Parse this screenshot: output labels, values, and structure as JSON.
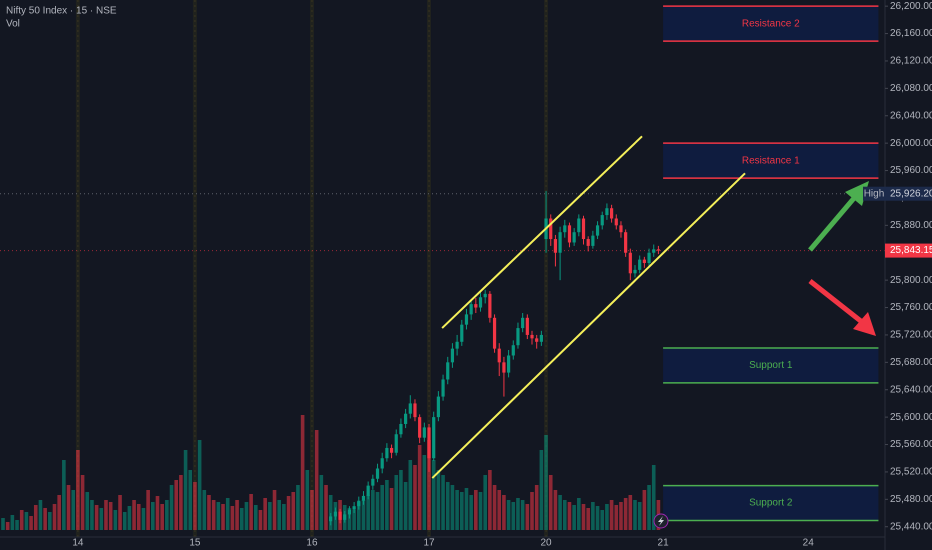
{
  "chart_data": {
    "type": "candlestick",
    "title": "Nifty 50 Index · 15 · NSE",
    "volume_label": "Vol",
    "up_color": "#089981",
    "down_color": "#f23645",
    "xlim": [
      -0.64,
      188.4
    ],
    "ylim": [
      25425,
      26209
    ],
    "xticks": [
      {
        "value": 16,
        "label": "14"
      },
      {
        "value": 41,
        "label": "15"
      },
      {
        "value": 66,
        "label": "16"
      },
      {
        "value": 91,
        "label": "17"
      },
      {
        "value": 116,
        "label": "20"
      },
      {
        "value": 141,
        "label": "21"
      },
      {
        "value": 172,
        "label": "24"
      }
    ],
    "yticks": [
      {
        "value": 26200,
        "label": "26,200.00"
      },
      {
        "value": 26160,
        "label": "26,160.00"
      },
      {
        "value": 26120,
        "label": "26,120.00"
      },
      {
        "value": 26080,
        "label": "26,080.00"
      },
      {
        "value": 26040,
        "label": "26,040.00"
      },
      {
        "value": 26000,
        "label": "26,000.00"
      },
      {
        "value": 25960,
        "label": "25,960.00"
      },
      {
        "value": 25920,
        "label": "25,920.00"
      },
      {
        "value": 25880,
        "label": "25,880.00"
      },
      {
        "value": 25840,
        "label": "25,840.00"
      },
      {
        "value": 25800,
        "label": "25,800.00"
      },
      {
        "value": 25760,
        "label": "25,760.00"
      },
      {
        "value": 25720,
        "label": "25,720.00"
      },
      {
        "value": 25680,
        "label": "25,680.00"
      },
      {
        "value": 25640,
        "label": "25,640.00"
      },
      {
        "value": 25600,
        "label": "25,600.00"
      },
      {
        "value": 25560,
        "label": "25,560.00"
      },
      {
        "value": 25520,
        "label": "25,520.00"
      },
      {
        "value": 25480,
        "label": "25,480.00"
      },
      {
        "value": 25440,
        "label": "25,440.00"
      }
    ],
    "candles": {
      "x": [
        70,
        71,
        72,
        73,
        74,
        75,
        76,
        77,
        78,
        79,
        80,
        81,
        82,
        83,
        84,
        85,
        86,
        87,
        88,
        89,
        90,
        91,
        92,
        93,
        94,
        95,
        96,
        97,
        98,
        99,
        100,
        101,
        102,
        103,
        104,
        105,
        106,
        107,
        108,
        109,
        110,
        111,
        112,
        113,
        114,
        115,
        116,
        117,
        118,
        119,
        120,
        121,
        122,
        123,
        124,
        125,
        126,
        127,
        128,
        129,
        130,
        131,
        132,
        133,
        134,
        135,
        136,
        137,
        138,
        139,
        140
      ],
      "ohlc": [
        [
          25448,
          25460,
          25442,
          25455
        ],
        [
          25455,
          25468,
          25450,
          25462
        ],
        [
          25462,
          25466,
          25445,
          25450
        ],
        [
          25450,
          25463,
          25446,
          25458
        ],
        [
          25458,
          25470,
          25452,
          25465
        ],
        [
          25465,
          25476,
          25460,
          25470
        ],
        [
          25470,
          25484,
          25465,
          25478
        ],
        [
          25478,
          25492,
          25472,
          25485
        ],
        [
          25485,
          25506,
          25480,
          25500
        ],
        [
          25500,
          25516,
          25494,
          25510
        ],
        [
          25510,
          25532,
          25505,
          25525
        ],
        [
          25525,
          25548,
          25518,
          25540
        ],
        [
          25540,
          25562,
          25535,
          25555
        ],
        [
          25555,
          25560,
          25540,
          25548
        ],
        [
          25548,
          25582,
          25544,
          25575
        ],
        [
          25575,
          25598,
          25570,
          25590
        ],
        [
          25590,
          25612,
          25584,
          25605
        ],
        [
          25605,
          25632,
          25598,
          25620
        ],
        [
          25620,
          25626,
          25594,
          25600
        ],
        [
          25600,
          25604,
          25562,
          25570
        ],
        [
          25570,
          25592,
          25564,
          25585
        ],
        [
          25585,
          25590,
          25520,
          25540
        ],
        [
          25540,
          25608,
          25536,
          25600
        ],
        [
          25600,
          25638,
          25594,
          25630
        ],
        [
          25630,
          25662,
          25624,
          25655
        ],
        [
          25655,
          25688,
          25648,
          25680
        ],
        [
          25680,
          25708,
          25672,
          25700
        ],
        [
          25700,
          25720,
          25690,
          25710
        ],
        [
          25710,
          25742,
          25704,
          25735
        ],
        [
          25735,
          25758,
          25728,
          25750
        ],
        [
          25750,
          25772,
          25742,
          25765
        ],
        [
          25765,
          25774,
          25752,
          25760
        ],
        [
          25760,
          25782,
          25754,
          25775
        ],
        [
          25775,
          25786,
          25766,
          25780
        ],
        [
          25780,
          25784,
          25738,
          25745
        ],
        [
          25745,
          25750,
          25694,
          25700
        ],
        [
          25700,
          25708,
          25660,
          25680
        ],
        [
          25680,
          25688,
          25630,
          25665
        ],
        [
          25665,
          25698,
          25658,
          25690
        ],
        [
          25690,
          25712,
          25684,
          25705
        ],
        [
          25705,
          25738,
          25700,
          25730
        ],
        [
          25730,
          25752,
          25724,
          25745
        ],
        [
          25745,
          25750,
          25714,
          25720
        ],
        [
          25720,
          25726,
          25706,
          25715
        ],
        [
          25715,
          25720,
          25700,
          25710
        ],
        [
          25710,
          25726,
          25704,
          25720
        ],
        [
          25860,
          25930,
          25840,
          25890
        ],
        [
          25890,
          25896,
          25850,
          25860
        ],
        [
          25860,
          25866,
          25820,
          25840
        ],
        [
          25840,
          25878,
          25800,
          25870
        ],
        [
          25870,
          25888,
          25862,
          25880
        ],
        [
          25880,
          25884,
          25848,
          25855
        ],
        [
          25855,
          25876,
          25850,
          25870
        ],
        [
          25870,
          25896,
          25864,
          25890
        ],
        [
          25890,
          25894,
          25852,
          25860
        ],
        [
          25860,
          25864,
          25842,
          25850
        ],
        [
          25850,
          25872,
          25846,
          25865
        ],
        [
          25865,
          25886,
          25860,
          25880
        ],
        [
          25880,
          25900,
          25874,
          25895
        ],
        [
          25895,
          25912,
          25888,
          25905
        ],
        [
          25905,
          25910,
          25884,
          25890
        ],
        [
          25890,
          25896,
          25874,
          25880
        ],
        [
          25880,
          25886,
          25862,
          25870
        ],
        [
          25870,
          25874,
          25834,
          25840
        ],
        [
          25840,
          25846,
          25800,
          25810
        ],
        [
          25810,
          25822,
          25804,
          25815
        ],
        [
          25815,
          25836,
          25810,
          25830
        ],
        [
          25830,
          25834,
          25818,
          25825
        ],
        [
          25825,
          25846,
          25820,
          25840
        ],
        [
          25840,
          25852,
          25834,
          25845
        ],
        [
          25845,
          25850,
          25838,
          25843.15
        ]
      ]
    },
    "volume": {
      "x": [
        0,
        1,
        2,
        3,
        4,
        5,
        6,
        7,
        8,
        9,
        10,
        11,
        12,
        13,
        14,
        15,
        16,
        17,
        18,
        19,
        20,
        21,
        22,
        23,
        24,
        25,
        26,
        27,
        28,
        29,
        30,
        31,
        32,
        33,
        34,
        35,
        36,
        37,
        38,
        39,
        40,
        41,
        42,
        43,
        44,
        45,
        46,
        47,
        48,
        49,
        50,
        51,
        52,
        53,
        54,
        55,
        56,
        57,
        58,
        59,
        60,
        61,
        62,
        63,
        64,
        65,
        66,
        67,
        68,
        69,
        70,
        71,
        72,
        73,
        74,
        75,
        76,
        77,
        78,
        79,
        80,
        81,
        82,
        83,
        84,
        85,
        86,
        87,
        88,
        89,
        90,
        91,
        92,
        93,
        94,
        95,
        96,
        97,
        98,
        99,
        100,
        101,
        102,
        103,
        104,
        105,
        106,
        107,
        108,
        109,
        110,
        111,
        112,
        113,
        114,
        115,
        116,
        117,
        118,
        119,
        120,
        121,
        122,
        123,
        124,
        125,
        126,
        127,
        128,
        129,
        130,
        131,
        132,
        133,
        134,
        135,
        136,
        137,
        138,
        139,
        140
      ],
      "values": [
        12,
        8,
        15,
        10,
        20,
        18,
        14,
        25,
        30,
        22,
        18,
        26,
        35,
        70,
        45,
        40,
        80,
        55,
        38,
        30,
        25,
        22,
        30,
        28,
        20,
        35,
        18,
        24,
        30,
        26,
        22,
        40,
        28,
        34,
        26,
        30,
        45,
        50,
        55,
        80,
        60,
        48,
        90,
        40,
        35,
        30,
        28,
        26,
        32,
        24,
        30,
        22,
        28,
        36,
        25,
        20,
        32,
        28,
        40,
        30,
        26,
        34,
        38,
        45,
        115,
        60,
        40,
        100,
        55,
        45,
        35,
        28,
        30,
        25,
        22,
        20,
        28,
        30,
        35,
        40,
        38,
        45,
        50,
        42,
        55,
        60,
        48,
        70,
        65,
        85,
        75,
        90,
        70,
        60,
        55,
        48,
        45,
        40,
        38,
        42,
        35,
        40,
        38,
        55,
        60,
        45,
        40,
        35,
        30,
        28,
        32,
        30,
        26,
        38,
        45,
        80,
        95,
        55,
        40,
        35,
        30,
        28,
        25,
        32,
        26,
        22,
        28,
        24,
        20,
        26,
        30,
        25,
        28,
        32,
        35,
        30,
        28,
        40,
        45,
        65,
        30
      ],
      "up": [
        1,
        0,
        1,
        1,
        0,
        1,
        0,
        0,
        1,
        0,
        1,
        0,
        0,
        1,
        0,
        1,
        0,
        0,
        1,
        1,
        0,
        1,
        0,
        0,
        1,
        0,
        1,
        1,
        0,
        0,
        1,
        0,
        1,
        0,
        0,
        1,
        1,
        0,
        0,
        1,
        1,
        0,
        1,
        1,
        0,
        0,
        1,
        0,
        1,
        0,
        0,
        1,
        1,
        0,
        1,
        0,
        0,
        1,
        0,
        1,
        1,
        0,
        0,
        1,
        0,
        1,
        0,
        0,
        1,
        0,
        1,
        1,
        0,
        1,
        1,
        1,
        1,
        1,
        1,
        1,
        1,
        1,
        1,
        0,
        1,
        1,
        1,
        1,
        0,
        0,
        1,
        0,
        1,
        1,
        1,
        1,
        1,
        1,
        1,
        1,
        1,
        0,
        1,
        1,
        0,
        0,
        0,
        0,
        1,
        1,
        1,
        1,
        0,
        0,
        0,
        1,
        1,
        0,
        0,
        1,
        1,
        0,
        1,
        1,
        0,
        0,
        1,
        1,
        1,
        1,
        0,
        0,
        0,
        0,
        0,
        1,
        1,
        0,
        1,
        1,
        0
      ]
    },
    "trendlines": [
      {
        "color": "#f5f05a",
        "x": [
          93.8,
          136.5
        ],
        "y": [
          25730,
          26010
        ]
      },
      {
        "color": "#f5f05a",
        "x": [
          91.7,
          158.5
        ],
        "y": [
          25511,
          25956
        ]
      }
    ],
    "zones": [
      {
        "label": "Resistance 2",
        "low": 26149,
        "high": 26200,
        "color": "#f23645",
        "x": [
          141,
          187
        ]
      },
      {
        "label": "Resistance 1",
        "low": 25949,
        "high": 26000,
        "color": "#f23645",
        "x": [
          141,
          187
        ]
      },
      {
        "label": "Support 1",
        "low": 25650,
        "high": 25701,
        "color": "#4caf50",
        "x": [
          141,
          187
        ]
      },
      {
        "label": "Support 2",
        "low": 25449,
        "high": 25500,
        "color": "#4caf50",
        "x": [
          141,
          187
        ]
      }
    ],
    "high": {
      "label": "High",
      "value": 25926.2,
      "value_label": "25,926.20"
    },
    "last": {
      "value": 25843.15,
      "value_label": "25,843.15"
    }
  }
}
